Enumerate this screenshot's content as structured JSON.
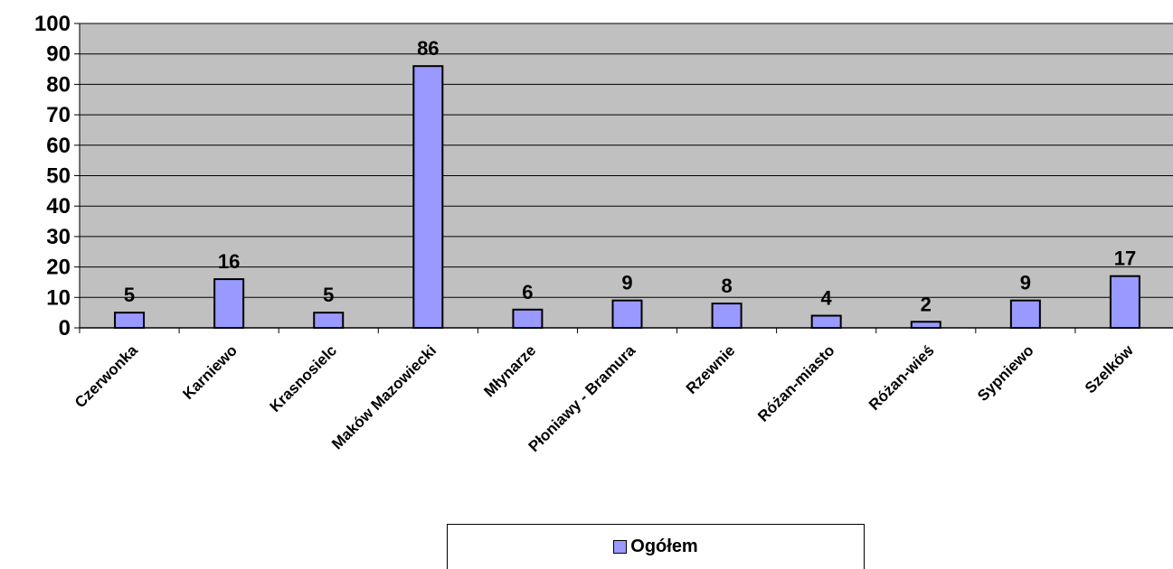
{
  "chart_data": {
    "type": "bar",
    "categories": [
      "Czerwonka",
      "Karniewo",
      "Krasnosielc",
      "Maków Mazowiecki",
      "Młynarze",
      "Płoniawy - Bramura",
      "Rzewnie",
      "Różan-miasto",
      "Różan-wieś",
      "Sypniewo",
      "Szelków"
    ],
    "series": [
      {
        "name": "Ogółem",
        "values": [
          5,
          16,
          5,
          86,
          6,
          9,
          8,
          4,
          2,
          9,
          17
        ]
      }
    ],
    "ylim": [
      0,
      100
    ],
    "yticks": [
      0,
      10,
      20,
      30,
      40,
      50,
      60,
      70,
      80,
      90,
      100
    ],
    "grid": true,
    "legend_position": "bottom",
    "colors": {
      "bar": "#9999ff",
      "plot_background": "#c0c0c0",
      "gridline": "#000000"
    }
  },
  "legend": {
    "label": "Ogółem"
  }
}
